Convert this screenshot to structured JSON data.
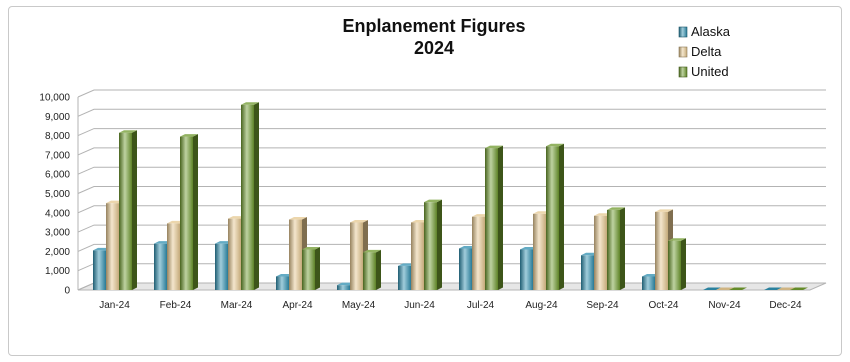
{
  "chart_data": {
    "type": "bar",
    "title": "Enplanement Figures",
    "subtitle": "2024",
    "xlabel": "",
    "ylabel": "",
    "categories": [
      "Jan-24",
      "Feb-24",
      "Mar-24",
      "Apr-24",
      "May-24",
      "Jun-24",
      "Jul-24",
      "Aug-24",
      "Sep-24",
      "Oct-24",
      "Nov-24",
      "Dec-24"
    ],
    "series": [
      {
        "name": "Alaska",
        "color": "#2f8fb0",
        "values": [
          2050,
          2400,
          2400,
          700,
          250,
          1250,
          2150,
          2100,
          1800,
          700,
          0,
          0
        ]
      },
      {
        "name": "Delta",
        "color": "#e6c890",
        "values": [
          4500,
          3450,
          3700,
          3650,
          3500,
          3500,
          3800,
          3950,
          3850,
          4050,
          0,
          0
        ]
      },
      {
        "name": "United",
        "color": "#6f9a2e",
        "values": [
          8150,
          7950,
          9600,
          2100,
          1950,
          4550,
          7350,
          7450,
          4150,
          2550,
          0,
          0
        ]
      }
    ],
    "yticks": [
      "0",
      "1,000",
      "2,000",
      "3,000",
      "4,000",
      "5,000",
      "6,000",
      "7,000",
      "8,000",
      "9,000",
      "10,000"
    ],
    "ylim": [
      0,
      10000
    ],
    "grid": true,
    "legend_position": "top-right"
  }
}
